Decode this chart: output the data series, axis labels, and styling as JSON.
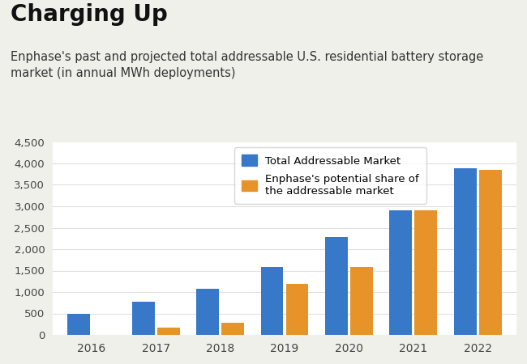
{
  "title": "Charging Up",
  "subtitle": "Enphase's past and projected total addressable U.S. residential battery storage\nmarket (in annual MWh deployments)",
  "years": [
    "2016",
    "2017",
    "2018",
    "2019",
    "2020",
    "2021",
    "2022"
  ],
  "total_addressable": [
    490,
    770,
    1080,
    1590,
    2280,
    2900,
    3880
  ],
  "enphase_share": [
    0,
    175,
    280,
    1180,
    1590,
    2900,
    3850
  ],
  "bar_color_blue": "#3878C8",
  "bar_color_orange": "#E8922A",
  "ylim": [
    0,
    4500
  ],
  "yticks": [
    0,
    500,
    1000,
    1500,
    2000,
    2500,
    3000,
    3500,
    4000,
    4500
  ],
  "legend_label_blue": "Total Addressable Market",
  "legend_label_orange": "Enphase's potential share of\nthe addressable market",
  "title_fontsize": 20,
  "subtitle_fontsize": 10.5,
  "background_color": "#f0f0eb",
  "plot_bg_color": "#ffffff",
  "grid_color": "#e0e0e0",
  "tick_label_color": "#444444"
}
